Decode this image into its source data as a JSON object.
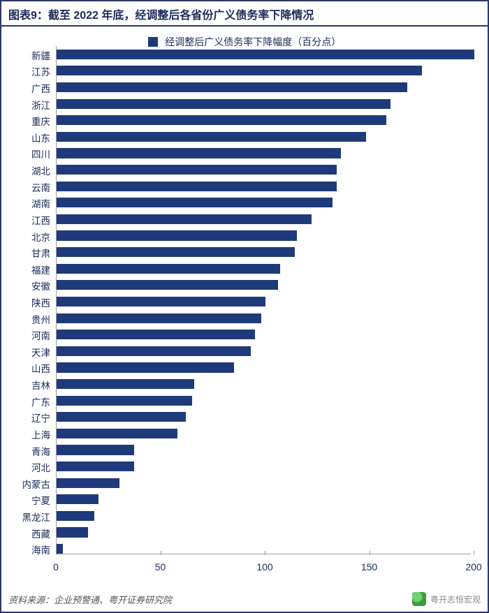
{
  "title": "图表9：截至 2022 年底，经调整后各省份广义债务率下降情况",
  "legend": {
    "label": "经调整后广义债务率下降幅度（百分点）",
    "swatch_color": "#1f3a7a"
  },
  "chart": {
    "type": "bar-horizontal",
    "xlim": [
      0,
      200
    ],
    "xticks": [
      0,
      50,
      100,
      150,
      200
    ],
    "bar_color": "#1f3a7a",
    "axis_color": "#9aa0a6",
    "label_color": "#1a2a5a",
    "background_color": "#ffffff",
    "y_label_fontsize": 13.5,
    "x_label_fontsize": 14,
    "bar_fill_ratio": 0.6,
    "categories": [
      "新疆",
      "江苏",
      "广西",
      "浙江",
      "重庆",
      "山东",
      "四川",
      "湖北",
      "云南",
      "湖南",
      "江西",
      "北京",
      "甘肃",
      "福建",
      "安徽",
      "陕西",
      "贵州",
      "河南",
      "天津",
      "山西",
      "吉林",
      "广东",
      "辽宁",
      "上海",
      "青海",
      "河北",
      "内蒙古",
      "宁夏",
      "黑龙江",
      "西藏",
      "海南"
    ],
    "values": [
      200,
      175,
      168,
      160,
      158,
      148,
      136,
      134,
      134,
      132,
      122,
      115,
      114,
      107,
      106,
      100,
      98,
      95,
      93,
      85,
      66,
      65,
      62,
      58,
      37,
      37,
      30,
      20,
      18,
      15,
      3
    ]
  },
  "source": "资料来源：企业预警通、粤开证券研究院",
  "watermark": "粤开志恒宏观"
}
